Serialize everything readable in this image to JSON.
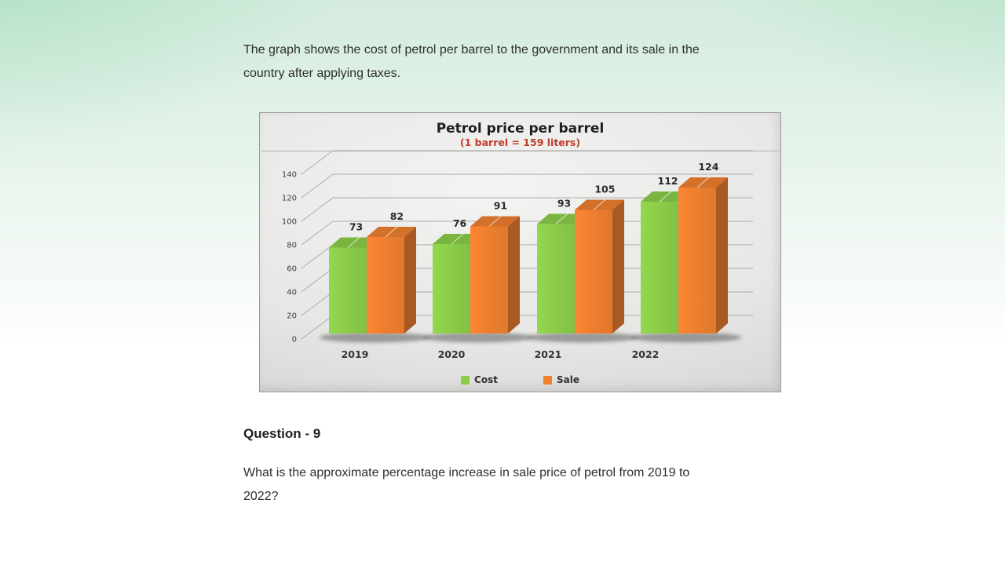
{
  "page": {
    "intro_text": "The graph shows the cost of petrol per barrel to the government and its sale in the\ncountry after applying taxes.",
    "question": {
      "heading": "Question - 9",
      "text": "What is the approximate  percentage increase in sale price of petrol from 2019 to\n2022?"
    }
  },
  "chart_data": {
    "type": "bar",
    "style": "3d",
    "title": "Petrol price per barrel",
    "subtitle": "(1 barrel = 159 liters)",
    "subtitle_color": "#c23b2c",
    "categories": [
      "2019",
      "2020",
      "2021",
      "2022"
    ],
    "series": [
      {
        "name": "Cost",
        "values": [
          73,
          76,
          93,
          112
        ],
        "color": "#8cce4a"
      },
      {
        "name": "Sale",
        "values": [
          82,
          91,
          105,
          124
        ],
        "color": "#f08030"
      }
    ],
    "ylim": [
      0,
      140
    ],
    "ytick_step": 20,
    "grid": true,
    "legend_position": "bottom"
  }
}
